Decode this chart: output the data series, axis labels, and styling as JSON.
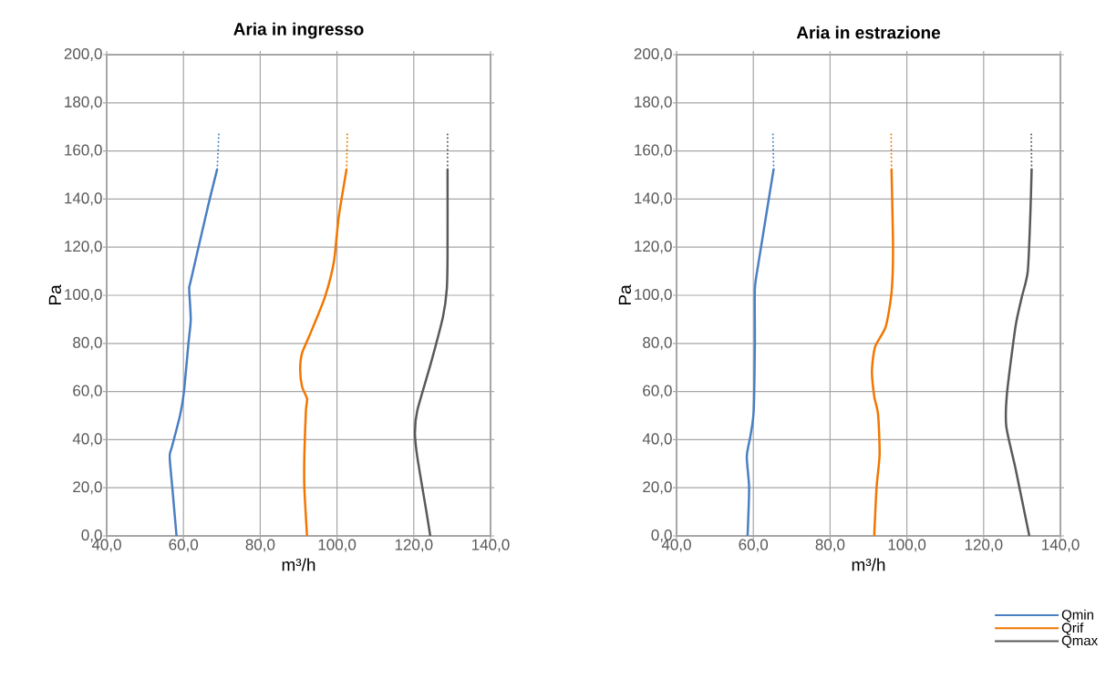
{
  "chart_data": [
    {
      "type": "line",
      "title": "Aria in ingresso",
      "xlabel": "m³/h",
      "ylabel": "Pa",
      "grid": true,
      "xlim": [
        40,
        140
      ],
      "ylim": [
        0,
        200
      ],
      "xticks": [
        {
          "value": 40,
          "label": "40,0"
        },
        {
          "value": 60,
          "label": "60,0"
        },
        {
          "value": 80,
          "label": "80,0"
        },
        {
          "value": 100,
          "label": "100,0"
        },
        {
          "value": 120,
          "label": "120,0"
        },
        {
          "value": 140,
          "label": "140,0"
        }
      ],
      "yticks": [
        {
          "value": 0,
          "label": "0,0"
        },
        {
          "value": 20,
          "label": "20,0"
        },
        {
          "value": 40,
          "label": "40,0"
        },
        {
          "value": 60,
          "label": "60,0"
        },
        {
          "value": 80,
          "label": "80,0"
        },
        {
          "value": 100,
          "label": "100,0"
        },
        {
          "value": 120,
          "label": "120,0"
        },
        {
          "value": 140,
          "label": "140,0"
        },
        {
          "value": 160,
          "label": "160,0"
        },
        {
          "value": 180,
          "label": "180,0"
        },
        {
          "value": 200,
          "label": "200,0"
        }
      ],
      "series": [
        {
          "color": "#4a7fc1",
          "x": [
            58.2,
            57.1,
            56.4,
            57.0,
            59.1,
            60.1,
            61.3,
            61.9,
            61.5,
            61.9,
            66.4,
            68.8
          ],
          "values": [
            0,
            20,
            33,
            37,
            50,
            59.5,
            80,
            90,
            102.5,
            106,
            137,
            152.5
          ]
        },
        {
          "color": "#4a7fc1",
          "line_style": "dotted",
          "x": [
            68.8,
            69.2
          ],
          "values": [
            152.5,
            167
          ]
        },
        {
          "color": "#f27600",
          "x": [
            92.2,
            91.5,
            91.5,
            91.9,
            92.2,
            90.9,
            90.4,
            90.9,
            92.9,
            96.8,
            99.2,
            100.4,
            102.5
          ],
          "values": [
            0,
            20,
            34,
            52,
            57,
            62,
            69,
            76,
            83.5,
            99,
            114,
            132,
            152.5
          ]
        },
        {
          "color": "#f27600",
          "line_style": "dotted",
          "x": [
            102.5,
            102.7
          ],
          "values": [
            152.5,
            167
          ]
        },
        {
          "color": "#595959",
          "x": [
            124.3,
            123.3,
            120.9,
            120.3,
            120.9,
            124.5,
            127.6,
            128.6,
            128.8,
            128.8
          ],
          "values": [
            0,
            10,
            33,
            43,
            52,
            72,
            91,
            102.5,
            116.5,
            152.5
          ]
        },
        {
          "color": "#595959",
          "line_style": "dotted",
          "x": [
            128.8,
            128.8
          ],
          "values": [
            152.5,
            167
          ]
        }
      ]
    },
    {
      "type": "line",
      "title": "Aria in estrazione",
      "xlabel": "m³/h",
      "ylabel": "Pa",
      "grid": true,
      "legend": "bottom right",
      "xlim": [
        40,
        140
      ],
      "ylim": [
        0,
        200
      ],
      "xticks": [
        {
          "value": 40,
          "label": "40,0"
        },
        {
          "value": 60,
          "label": "60,0"
        },
        {
          "value": 80,
          "label": "80,0"
        },
        {
          "value": 100,
          "label": "100,0"
        },
        {
          "value": 120,
          "label": "120,0"
        },
        {
          "value": 140,
          "label": "140,0"
        }
      ],
      "yticks": [
        {
          "value": 0,
          "label": "0,0"
        },
        {
          "value": 20,
          "label": "20,0"
        },
        {
          "value": 40,
          "label": "40,0"
        },
        {
          "value": 60,
          "label": "60,0"
        },
        {
          "value": 80,
          "label": "80,0"
        },
        {
          "value": 100,
          "label": "100,0"
        },
        {
          "value": 120,
          "label": "120,0"
        },
        {
          "value": 140,
          "label": "140,0"
        },
        {
          "value": 160,
          "label": "160,0"
        },
        {
          "value": 180,
          "label": "180,0"
        },
        {
          "value": 200,
          "label": "200,0"
        }
      ],
      "series": [
        {
          "name": "Qmin",
          "color": "#4a7fc1",
          "x": [
            58.5,
            58.9,
            58.3,
            59.3,
            60.1,
            60.4,
            60.4,
            61.3,
            65.3
          ],
          "values": [
            0,
            20,
            33,
            42,
            52,
            80,
            102.5,
            113,
            152.5
          ]
        },
        {
          "color": "#4a7fc1",
          "line_style": "dotted",
          "x": [
            65.3,
            65.1
          ],
          "values": [
            152.5,
            167
          ]
        },
        {
          "name": "Qrif",
          "color": "#f27600",
          "x": [
            91.5,
            92.1,
            92.9,
            92.5,
            91.5,
            90.9,
            91.7,
            94.5,
            96.0,
            96.4,
            96.0
          ],
          "values": [
            0,
            20,
            34,
            50.5,
            58,
            68.5,
            78.5,
            87,
            101,
            119,
            152.5
          ]
        },
        {
          "color": "#f27600",
          "line_style": "dotted",
          "x": [
            96.0,
            95.9
          ],
          "values": [
            152.5,
            167
          ]
        },
        {
          "name": "Qmax",
          "color": "#595959",
          "x": [
            131.9,
            128.3,
            125.9,
            126.1,
            128.3,
            129.9,
            131.5,
            132.2,
            132.5
          ],
          "values": [
            0,
            28,
            45.5,
            59.5,
            87,
            99,
            110,
            135,
            152.5
          ]
        },
        {
          "color": "#595959",
          "line_style": "dotted",
          "x": [
            132.5,
            132.4
          ],
          "values": [
            152.5,
            167
          ]
        }
      ]
    }
  ]
}
